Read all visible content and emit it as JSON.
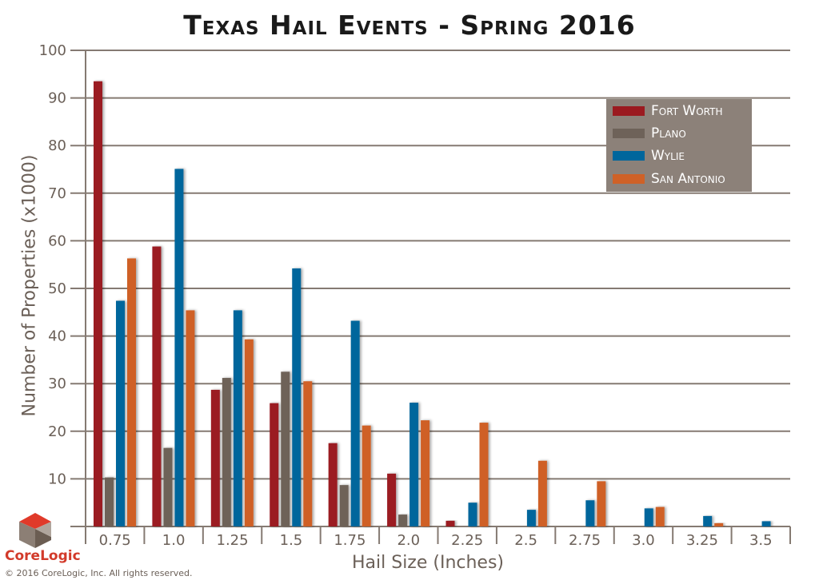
{
  "chart_data": {
    "type": "bar",
    "title": "Texas Hail Events - Spring 2016",
    "xlabel": "Hail Size (Inches)",
    "ylabel": "Number of Properties (x1000)",
    "ylim": [
      0,
      100
    ],
    "yticks": [
      "10",
      "20",
      "30",
      "40",
      "50",
      "60",
      "70",
      "80",
      "90",
      "100"
    ],
    "grid": true,
    "legend_position": "top-right",
    "categories": [
      "0.75",
      "1.0",
      "1.25",
      "1.5",
      "1.75",
      "2.0",
      "2.25",
      "2.5",
      "2.75",
      "3.0",
      "3.25",
      "3.5"
    ],
    "series": [
      {
        "name": "Fort Worth",
        "color": "#9b1a20",
        "values": [
          93.5,
          58.8,
          28.7,
          25.9,
          17.5,
          11.1,
          1.2,
          0,
          0,
          0,
          0,
          0
        ]
      },
      {
        "name": "Plano",
        "color": "#6e6259",
        "values": [
          10.3,
          16.5,
          31.2,
          32.5,
          8.7,
          2.5,
          0,
          0,
          0,
          0,
          0,
          0
        ]
      },
      {
        "name": "Wylie",
        "color": "#00669c",
        "values": [
          47.4,
          75.1,
          45.4,
          54.2,
          43.2,
          26.0,
          5.0,
          3.5,
          5.5,
          3.8,
          2.2,
          1.1
        ]
      },
      {
        "name": "San Antonio",
        "color": "#cf6127",
        "values": [
          56.3,
          45.4,
          39.3,
          30.5,
          21.2,
          22.3,
          21.8,
          13.8,
          9.5,
          4.1,
          0.7,
          0
        ]
      }
    ]
  },
  "branding": {
    "logo_text": "CoreLogic",
    "copyright": "© 2016 CoreLogic, Inc. All rights reserved."
  }
}
